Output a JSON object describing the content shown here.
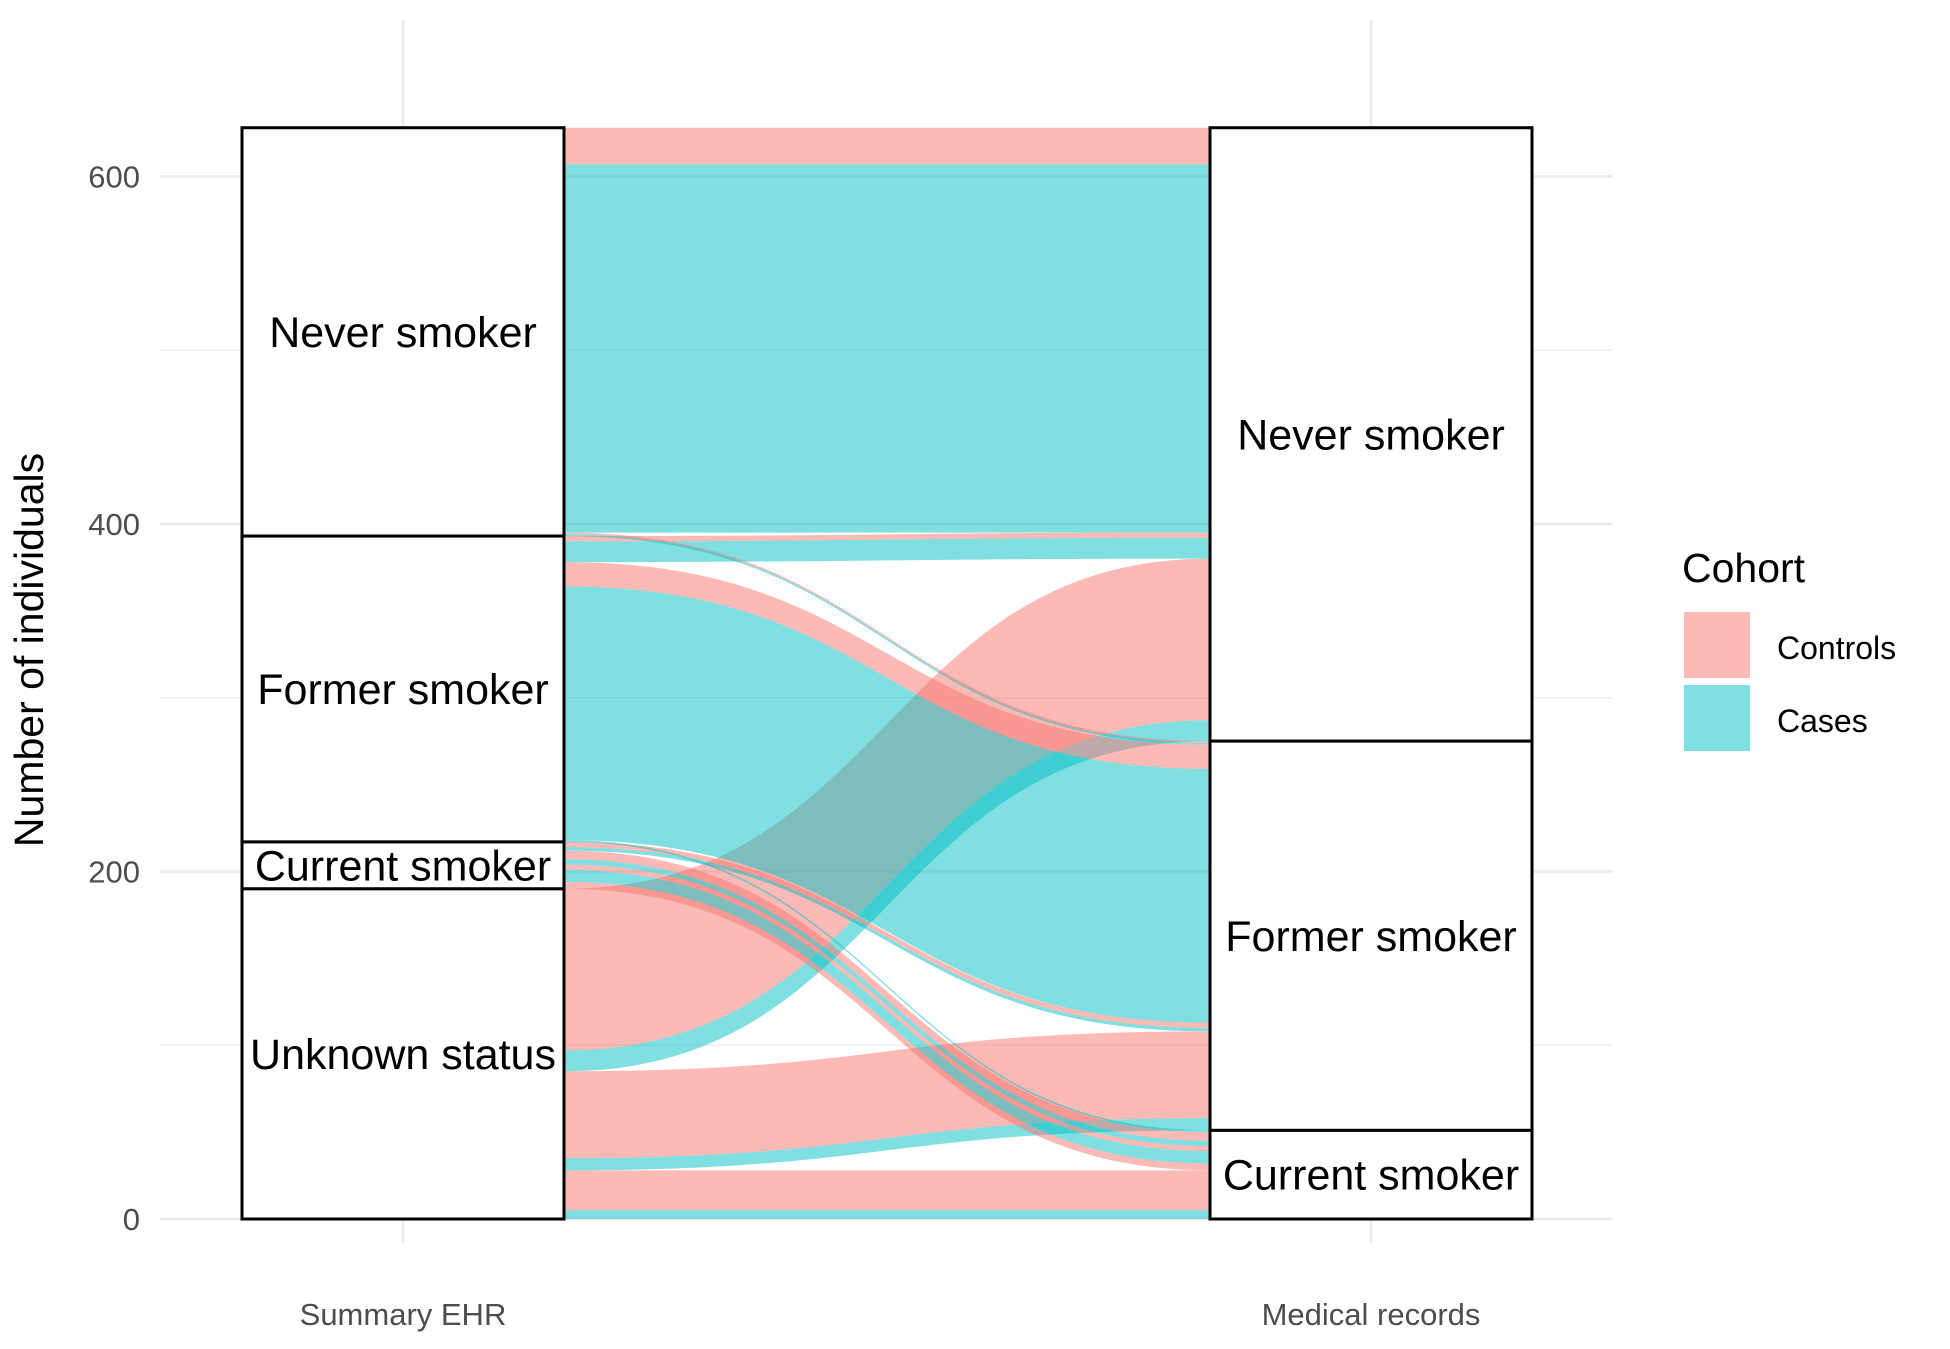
{
  "chart_data": {
    "type": "alluvial",
    "title": "",
    "xlabel": "",
    "ylabel": "Number of individuals",
    "ylim": [
      0,
      655
    ],
    "yticks": [
      0,
      200,
      400,
      600
    ],
    "grid": true,
    "legend_placement": "right",
    "axes": [
      "Summary EHR",
      "Medical records"
    ],
    "strata": {
      "Summary EHR": [
        "Never smoker",
        "Former smoker",
        "Current smoker",
        "Unknown status"
      ],
      "Medical records": [
        "Never smoker",
        "Former smoker",
        "Current smoker"
      ]
    },
    "legend": {
      "title": "Cohort",
      "items": [
        {
          "label": "Controls",
          "color": "#f8766d"
        },
        {
          "label": "Cases",
          "color": "#00bfc4"
        }
      ]
    },
    "flows": [
      {
        "cohort": "Cases",
        "from": "Unknown status",
        "to": "Current smoker",
        "value": 5
      },
      {
        "cohort": "Controls",
        "from": "Unknown status",
        "to": "Current smoker",
        "value": 23
      },
      {
        "cohort": "Cases",
        "from": "Unknown status",
        "to": "Former smoker",
        "value": 7
      },
      {
        "cohort": "Controls",
        "from": "Unknown status",
        "to": "Former smoker",
        "value": 50
      },
      {
        "cohort": "Cases",
        "from": "Unknown status",
        "to": "Never smoker",
        "value": 12
      },
      {
        "cohort": "Controls",
        "from": "Unknown status",
        "to": "Never smoker",
        "value": 93
      },
      {
        "cohort": "Controls",
        "from": "Current smoker",
        "to": "Current smoker",
        "value": 4
      },
      {
        "cohort": "Cases",
        "from": "Current smoker",
        "to": "Current smoker",
        "value": 7
      },
      {
        "cohort": "Controls",
        "from": "Current smoker",
        "to": "Current smoker",
        "value": 3
      },
      {
        "cohort": "Cases",
        "from": "Current smoker",
        "to": "Current smoker",
        "value": 3
      },
      {
        "cohort": "Controls",
        "from": "Current smoker",
        "to": "Current smoker",
        "value": 5
      },
      {
        "cohort": "Cases",
        "from": "Current smoker",
        "to": "Former smoker",
        "value": 2
      },
      {
        "cohort": "Controls",
        "from": "Current smoker",
        "to": "Former smoker",
        "value": 3
      },
      {
        "cohort": "Cases",
        "from": "Former smoker",
        "to": "Current smoker",
        "value": 1
      },
      {
        "cohort": "Cases",
        "from": "Former smoker",
        "to": "Former smoker",
        "value": 146
      },
      {
        "cohort": "Controls",
        "from": "Former smoker",
        "to": "Former smoker",
        "value": 14
      },
      {
        "cohort": "Cases",
        "from": "Former smoker",
        "to": "Never smoker",
        "value": 12
      },
      {
        "cohort": "Controls",
        "from": "Former smoker",
        "to": "Never smoker",
        "value": 3
      },
      {
        "cohort": "Cases",
        "from": "Never smoker",
        "to": "Former smoker",
        "value": 1
      },
      {
        "cohort": "Controls",
        "from": "Never smoker",
        "to": "Former smoker",
        "value": 1
      },
      {
        "cohort": "Cases",
        "from": "Never smoker",
        "to": "Never smoker",
        "value": 212
      },
      {
        "cohort": "Controls",
        "from": "Never smoker",
        "to": "Never smoker",
        "value": 21
      }
    ]
  }
}
